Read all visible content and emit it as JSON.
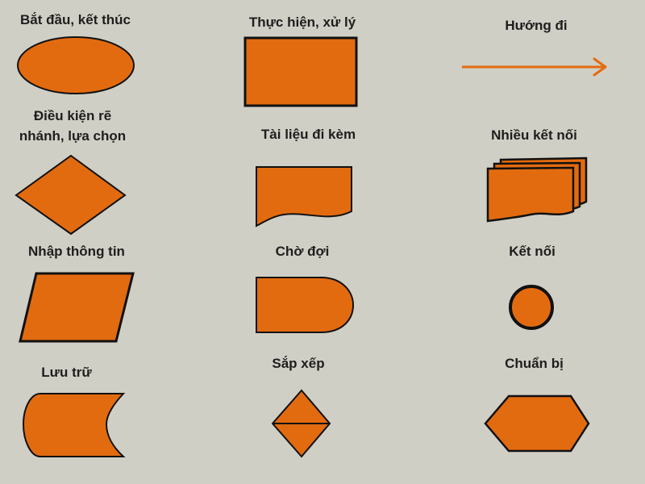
{
  "palette": {
    "background": "#d0cfc5",
    "fill": "#e36b0f",
    "stroke": "#111111",
    "arrow": "#e36b0f"
  },
  "symbols": [
    {
      "icon": "ellipse-icon",
      "label": "Bắt đầu, kết thúc"
    },
    {
      "icon": "rectangle-icon",
      "label": "Thực hiện, xử lý"
    },
    {
      "icon": "arrow-icon",
      "label": "Hướng đi"
    },
    {
      "icon": "diamond-icon",
      "label": "Điều kiện rẽ nhánh, lựa chọn",
      "label_lines": [
        "Điều kiện rẽ",
        "nhánh, lựa chọn"
      ]
    },
    {
      "icon": "document-icon",
      "label": "Tài liệu đi kèm"
    },
    {
      "icon": "multi-document-icon",
      "label": "Nhiều kết nối"
    },
    {
      "icon": "parallelogram-icon",
      "label": "Nhập thông tin"
    },
    {
      "icon": "delay-icon",
      "label": "Chờ đợi"
    },
    {
      "icon": "circle-icon",
      "label": "Kết nối"
    },
    {
      "icon": "stored-data-icon",
      "label": "Lưu trữ"
    },
    {
      "icon": "sort-icon",
      "label": "Sắp xếp"
    },
    {
      "icon": "hexagon-icon",
      "label": "Chuẩn bị"
    }
  ]
}
